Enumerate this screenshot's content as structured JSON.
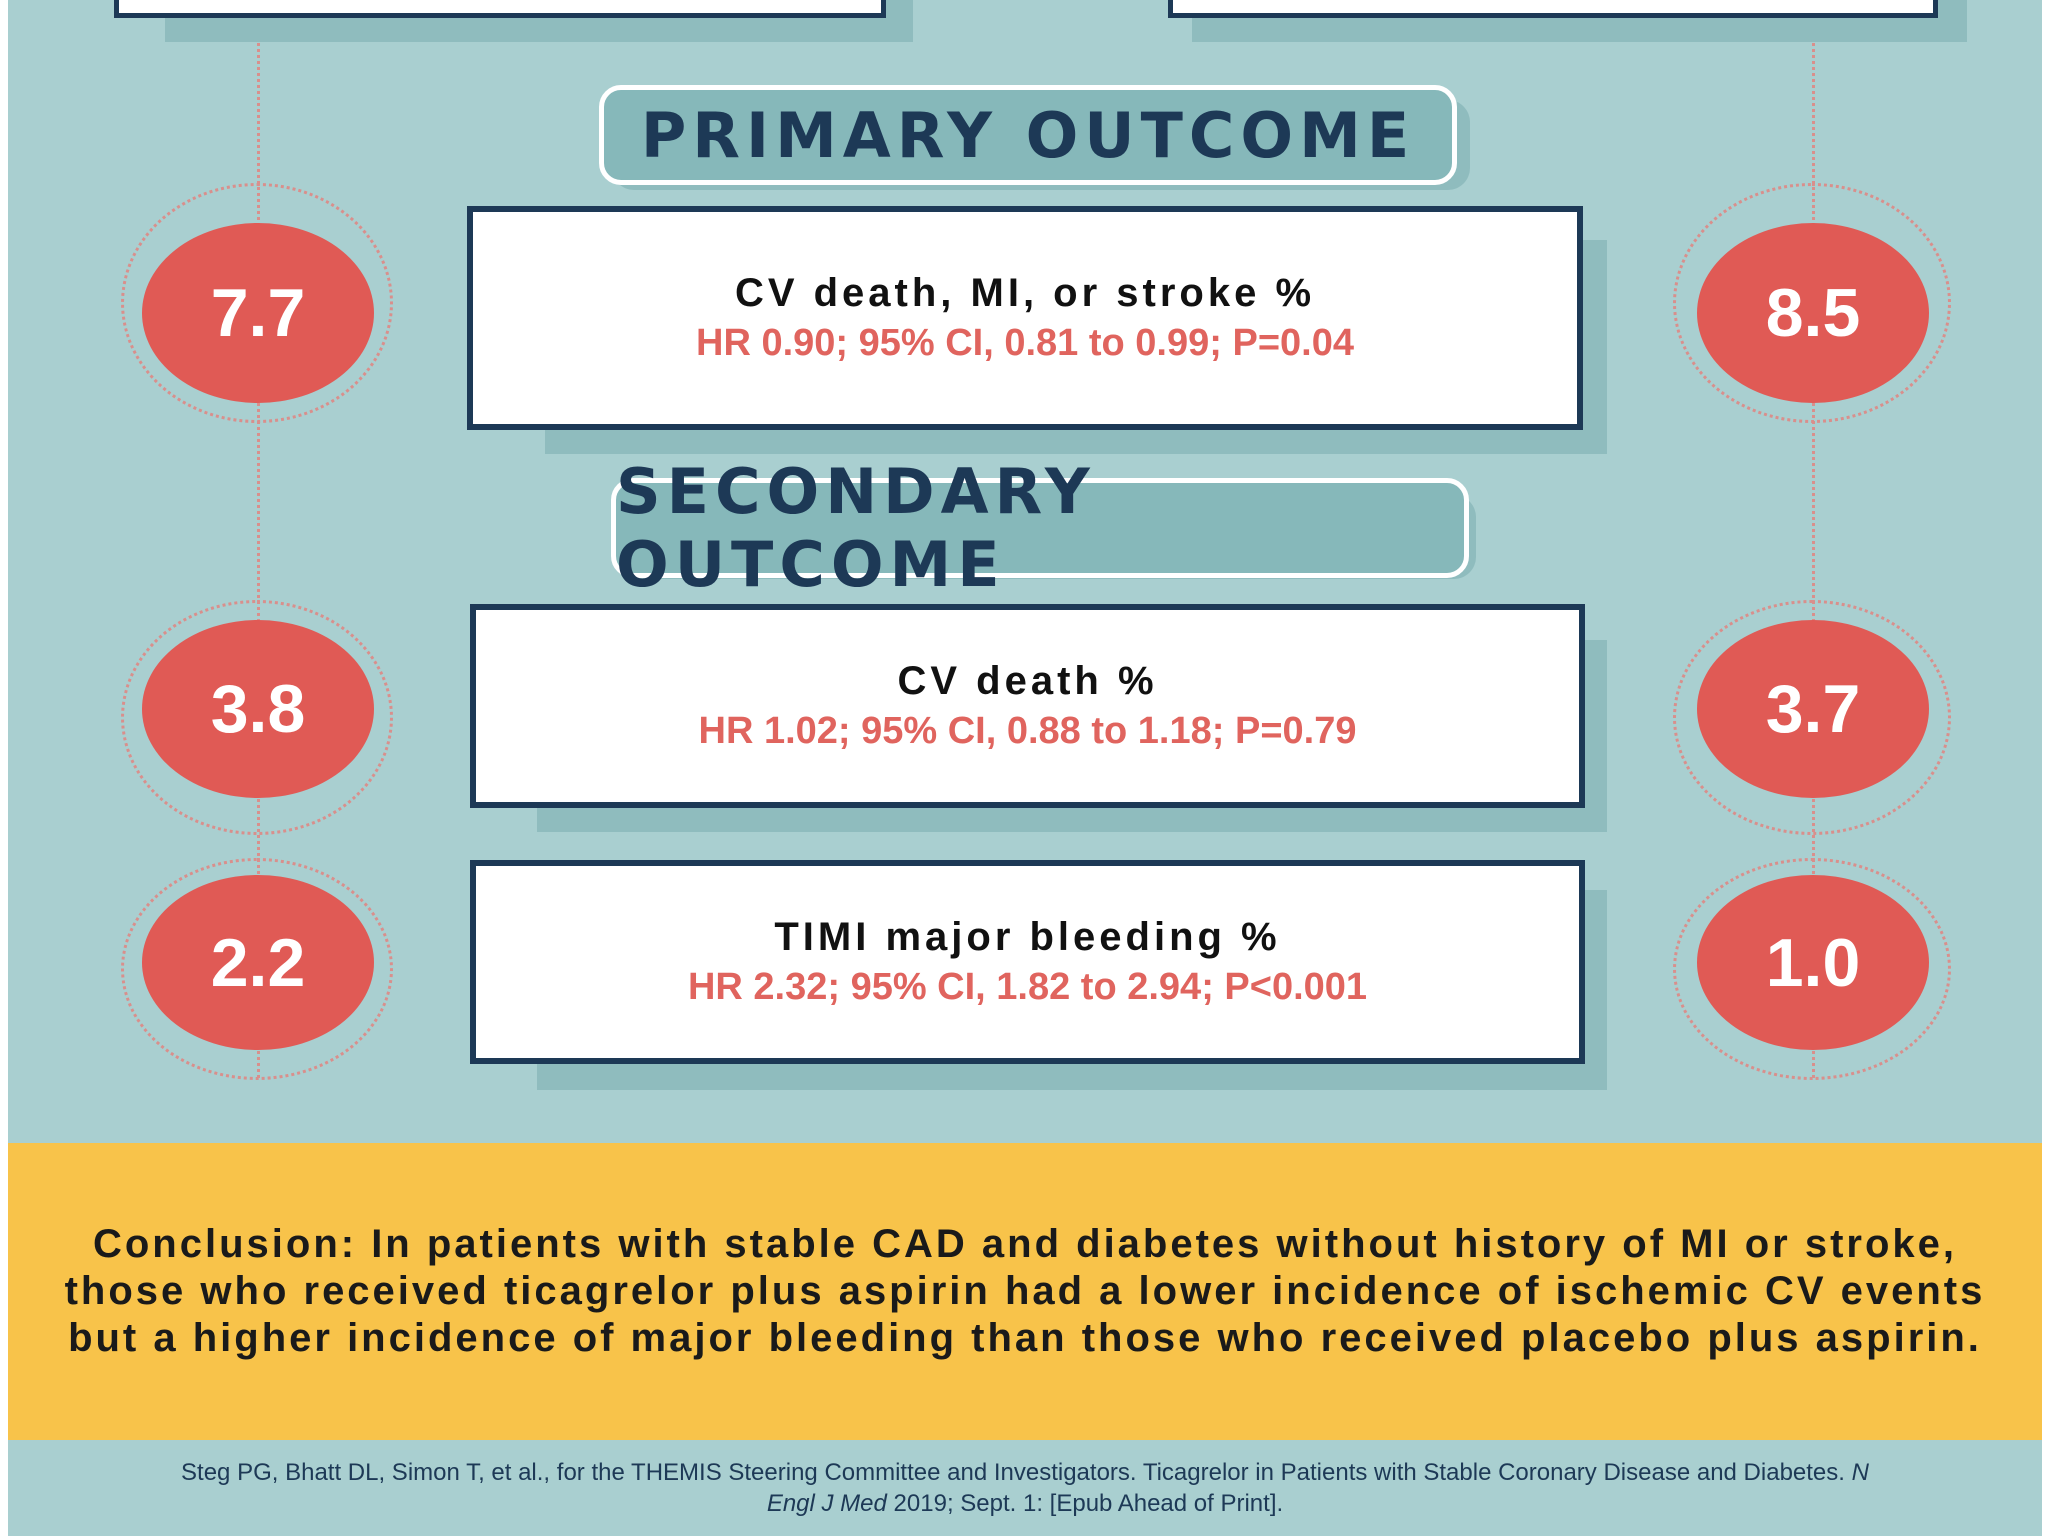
{
  "sections": {
    "primary_label": "PRIMARY OUTCOME",
    "secondary_label": "SECONDARY OUTCOME"
  },
  "outcomes": [
    {
      "title": "CV death, MI, or stroke %",
      "stat": "HR 0.90; 95% CI, 0.81 to 0.99; P=0.04",
      "left_value": "7.7",
      "right_value": "8.5"
    },
    {
      "title": "CV death %",
      "stat": "HR 1.02; 95% CI, 0.88 to 1.18; P=0.79",
      "left_value": "3.8",
      "right_value": "3.7"
    },
    {
      "title": "TIMI major bleeding %",
      "stat": "HR 2.32; 95% CI, 1.82 to 2.94; P<0.001",
      "left_value": "2.2",
      "right_value": "1.0"
    }
  ],
  "conclusion": "Conclusion: In patients with stable CAD and diabetes without history of MI or stroke, those who received ticagrelor plus aspirin had a lower incidence of ischemic CV events but a higher incidence of major bleeding than those who received placebo plus aspirin.",
  "reference": {
    "authors_title": "Steg PG, Bhatt DL, Simon T, et al., for the THEMIS Steering Committee and Investigators. Ticagrelor in Patients with Stable Coronary Disease and Diabetes.",
    "journal": "N Engl J Med",
    "date_note": "2019; Sept. 1: [Epub Ahead of Print]."
  },
  "colors": {
    "background": "#a9cfd0",
    "navy": "#1d3956",
    "coral": "#e05a55",
    "stat_text": "#e0645e",
    "conclusion_band": "#f8c34a"
  }
}
